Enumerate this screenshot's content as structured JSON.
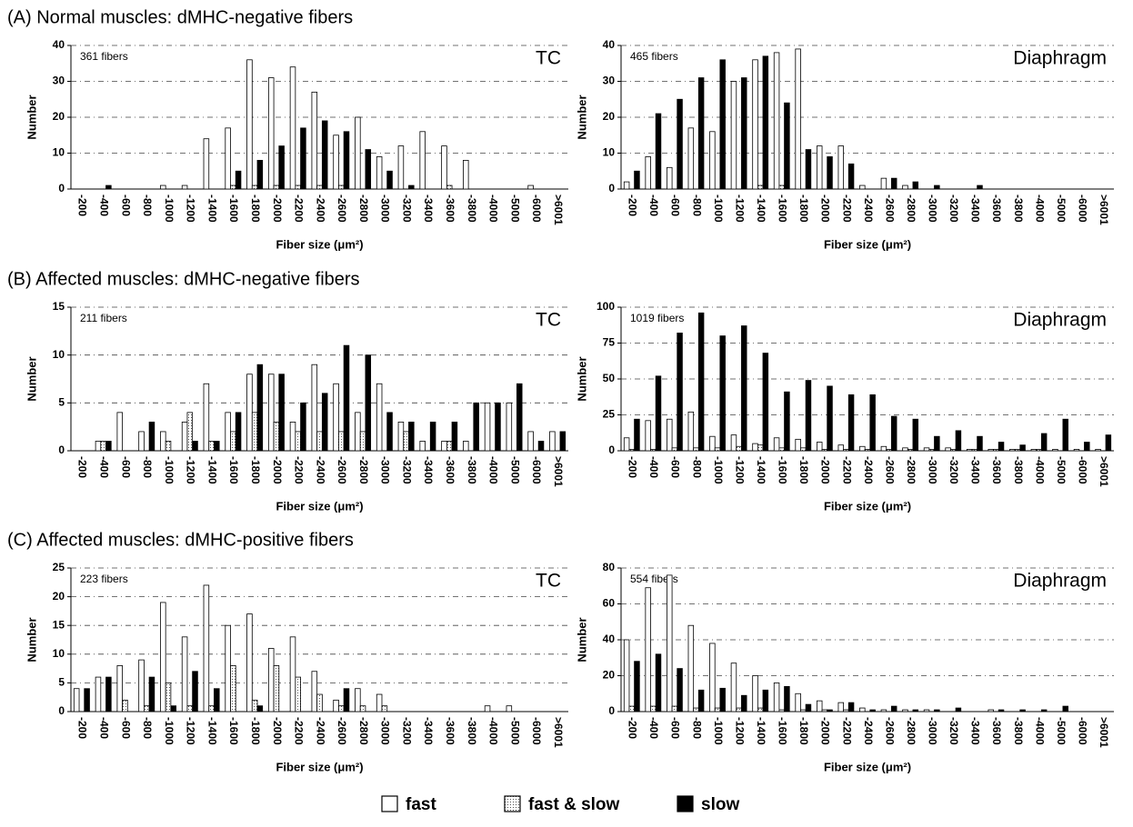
{
  "panels": [
    "(A) Normal muscles: dMHC-negative fibers",
    "(B) Affected muscles: dMHC-negative fibers",
    "(C) Affected muscles: dMHC-positive fibers"
  ],
  "chart_data": [
    {
      "type": "bar",
      "title": "TC",
      "annotation": "361 fibers",
      "x_label": "Fiber size (μm²)",
      "y_label": "Number",
      "categories": [
        "-200",
        "-400",
        "-600",
        "-800",
        "-1000",
        "-1200",
        "-1400",
        "-1600",
        "-1800",
        "-2000",
        "-2200",
        "-2400",
        "-2600",
        "-2800",
        "-3000",
        "-3200",
        "-3400",
        "-3600",
        "-3800",
        "-4000",
        "-5000",
        "-6000",
        ">6001"
      ],
      "ylim": [
        0,
        40
      ],
      "yticks": [
        0,
        10,
        20,
        30,
        40
      ],
      "grid": true,
      "series": [
        {
          "name": "fast",
          "color": "#ffffff",
          "values": [
            0,
            0,
            0,
            0,
            1,
            1,
            14,
            17,
            36,
            31,
            34,
            27,
            15,
            20,
            9,
            12,
            16,
            12,
            8,
            0,
            0,
            1,
            0
          ]
        },
        {
          "name": "fast & slow",
          "color": "#cccccc",
          "values": [
            0,
            0,
            0,
            0,
            0,
            0,
            0,
            1,
            1,
            1,
            1,
            1,
            1,
            0,
            0,
            0,
            0,
            1,
            0,
            0,
            0,
            0,
            0
          ]
        },
        {
          "name": "slow",
          "color": "#000000",
          "values": [
            0,
            1,
            0,
            0,
            0,
            0,
            0,
            5,
            8,
            12,
            17,
            19,
            16,
            11,
            5,
            1,
            0,
            0,
            0,
            0,
            0,
            0,
            0
          ]
        }
      ]
    },
    {
      "type": "bar",
      "title": "Diaphragm",
      "annotation": "465 fibers",
      "x_label": "Fiber size (μm²)",
      "y_label": "Number",
      "categories": [
        "-200",
        "-400",
        "-600",
        "-800",
        "-1000",
        "-1200",
        "-1400",
        "-1600",
        "-1800",
        "-2000",
        "-2200",
        "-2400",
        "-2600",
        "-2800",
        "-3000",
        "-3200",
        "-3400",
        "-3600",
        "-3800",
        "-4000",
        "-5000",
        "-6000",
        ">6001"
      ],
      "ylim": [
        0,
        40
      ],
      "yticks": [
        0,
        10,
        20,
        30,
        40
      ],
      "grid": true,
      "series": [
        {
          "name": "fast",
          "color": "#ffffff",
          "values": [
            2,
            9,
            6,
            17,
            16,
            30,
            36,
            38,
            39,
            12,
            12,
            1,
            3,
            1,
            0,
            0,
            0,
            0,
            0,
            0,
            0,
            0,
            0
          ]
        },
        {
          "name": "fast & slow",
          "color": "#cccccc",
          "values": [
            0,
            0,
            0,
            0,
            0,
            0,
            1,
            1,
            0,
            0,
            0,
            0,
            0,
            0,
            0,
            0,
            0,
            0,
            0,
            0,
            0,
            0,
            0
          ]
        },
        {
          "name": "slow",
          "color": "#000000",
          "values": [
            5,
            21,
            25,
            31,
            36,
            31,
            37,
            24,
            11,
            9,
            7,
            0,
            3,
            2,
            1,
            0,
            1,
            0,
            0,
            0,
            0,
            0,
            0
          ]
        }
      ]
    },
    {
      "type": "bar",
      "title": "TC",
      "annotation": "211 fibers",
      "x_label": "Fiber size (μm²)",
      "y_label": "Number",
      "categories": [
        "-200",
        "-400",
        "-600",
        "-800",
        "-1000",
        "-1200",
        "-1400",
        "-1600",
        "-1800",
        "-2000",
        "-2200",
        "-2400",
        "-2600",
        "-2800",
        "-3000",
        "-3200",
        "-3400",
        "-3600",
        "-3800",
        "-4000",
        "-5000",
        "-6000",
        ">6001"
      ],
      "ylim": [
        0,
        15
      ],
      "yticks": [
        0,
        5,
        10,
        15
      ],
      "grid": true,
      "series": [
        {
          "name": "fast",
          "color": "#ffffff",
          "values": [
            0,
            1,
            4,
            2,
            2,
            3,
            7,
            4,
            8,
            8,
            3,
            9,
            7,
            4,
            7,
            3,
            1,
            1,
            1,
            5,
            5,
            2,
            2
          ]
        },
        {
          "name": "fast & slow",
          "color": "#cccccc",
          "values": [
            0,
            1,
            0,
            0,
            1,
            4,
            1,
            2,
            4,
            3,
            2,
            2,
            2,
            2,
            0,
            2,
            0,
            1,
            0,
            0,
            0,
            0,
            0
          ]
        },
        {
          "name": "slow",
          "color": "#000000",
          "values": [
            0,
            1,
            0,
            3,
            0,
            1,
            1,
            4,
            9,
            8,
            5,
            6,
            11,
            10,
            4,
            3,
            3,
            3,
            5,
            5,
            7,
            1,
            2
          ]
        }
      ]
    },
    {
      "type": "bar",
      "title": "Diaphragm",
      "annotation": "1019 fibers",
      "x_label": "Fiber size (μm²)",
      "y_label": "Number",
      "categories": [
        "-200",
        "-400",
        "-600",
        "-800",
        "-1000",
        "-1200",
        "-1400",
        "-1600",
        "-1800",
        "-2000",
        "-2200",
        "-2400",
        "-2600",
        "-2800",
        "-3000",
        "-3200",
        "-3400",
        "-3600",
        "-3800",
        "-4000",
        "-5000",
        "-6000",
        ">6001"
      ],
      "ylim": [
        0,
        100
      ],
      "yticks": [
        0,
        25,
        50,
        75,
        100
      ],
      "grid": true,
      "series": [
        {
          "name": "fast",
          "color": "#ffffff",
          "values": [
            9,
            21,
            22,
            27,
            10,
            11,
            5,
            9,
            8,
            6,
            4,
            3,
            3,
            2,
            2,
            2,
            1,
            1,
            1,
            1,
            1,
            1,
            1
          ]
        },
        {
          "name": "fast & slow",
          "color": "#cccccc",
          "values": [
            1,
            1,
            2,
            2,
            2,
            3,
            4,
            2,
            2,
            1,
            1,
            1,
            1,
            1,
            1,
            1,
            1,
            1,
            1,
            1,
            0,
            0,
            0
          ]
        },
        {
          "name": "slow",
          "color": "#000000",
          "values": [
            22,
            52,
            82,
            96,
            80,
            87,
            68,
            41,
            49,
            45,
            39,
            39,
            24,
            22,
            10,
            14,
            10,
            6,
            4,
            12,
            22,
            6,
            11
          ]
        }
      ]
    },
    {
      "type": "bar",
      "title": "TC",
      "annotation": "223 fibers",
      "x_label": "Fiber size (μm²)",
      "y_label": "Number",
      "categories": [
        "-200",
        "-400",
        "-600",
        "-800",
        "-1000",
        "-1200",
        "-1400",
        "-1600",
        "-1800",
        "-2000",
        "-2200",
        "-2400",
        "-2600",
        "-2800",
        "-3000",
        "-3200",
        "-3400",
        "-3600",
        "-3800",
        "-4000",
        "-5000",
        "-6000",
        ">6001"
      ],
      "ylim": [
        0,
        25
      ],
      "yticks": [
        0,
        5,
        10,
        15,
        20,
        25
      ],
      "grid": true,
      "series": [
        {
          "name": "fast",
          "color": "#ffffff",
          "values": [
            4,
            6,
            8,
            9,
            19,
            13,
            22,
            15,
            17,
            11,
            13,
            7,
            2,
            4,
            3,
            0,
            0,
            0,
            0,
            1,
            1,
            0,
            0
          ]
        },
        {
          "name": "fast & slow",
          "color": "#cccccc",
          "values": [
            0,
            0,
            2,
            1,
            5,
            1,
            1,
            8,
            2,
            8,
            6,
            3,
            1,
            1,
            1,
            0,
            0,
            0,
            0,
            0,
            0,
            0,
            0
          ]
        },
        {
          "name": "slow",
          "color": "#000000",
          "values": [
            4,
            6,
            0,
            6,
            1,
            7,
            4,
            0,
            1,
            0,
            0,
            0,
            4,
            0,
            0,
            0,
            0,
            0,
            0,
            0,
            0,
            0,
            0
          ]
        }
      ]
    },
    {
      "type": "bar",
      "title": "Diaphragm",
      "annotation": "554 fibers",
      "x_label": "Fiber size (μm²)",
      "y_label": "Number",
      "categories": [
        "-200",
        "-400",
        "-600",
        "-800",
        "-1000",
        "-1200",
        "-1400",
        "-1600",
        "-1800",
        "-2000",
        "-2200",
        "-2400",
        "-2600",
        "-2800",
        "-3000",
        "-3200",
        "-3400",
        "-3600",
        "-3800",
        "-4000",
        "-5000",
        "-6000",
        ">6001"
      ],
      "ylim": [
        0,
        80
      ],
      "yticks": [
        0,
        20,
        40,
        60,
        80
      ],
      "grid": true,
      "series": [
        {
          "name": "fast",
          "color": "#ffffff",
          "values": [
            40,
            69,
            76,
            48,
            38,
            27,
            20,
            16,
            10,
            6,
            5,
            2,
            1,
            1,
            1,
            0,
            0,
            1,
            0,
            0,
            0,
            0,
            0
          ]
        },
        {
          "name": "fast & slow",
          "color": "#cccccc",
          "values": [
            3,
            3,
            3,
            2,
            2,
            2,
            2,
            1,
            1,
            1,
            1,
            0,
            0,
            0,
            0,
            0,
            0,
            0,
            0,
            0,
            0,
            0,
            0
          ]
        },
        {
          "name": "slow",
          "color": "#000000",
          "values": [
            28,
            32,
            24,
            12,
            13,
            9,
            12,
            14,
            4,
            1,
            5,
            1,
            3,
            1,
            1,
            2,
            0,
            1,
            1,
            1,
            3,
            0,
            0
          ]
        }
      ]
    }
  ]
}
